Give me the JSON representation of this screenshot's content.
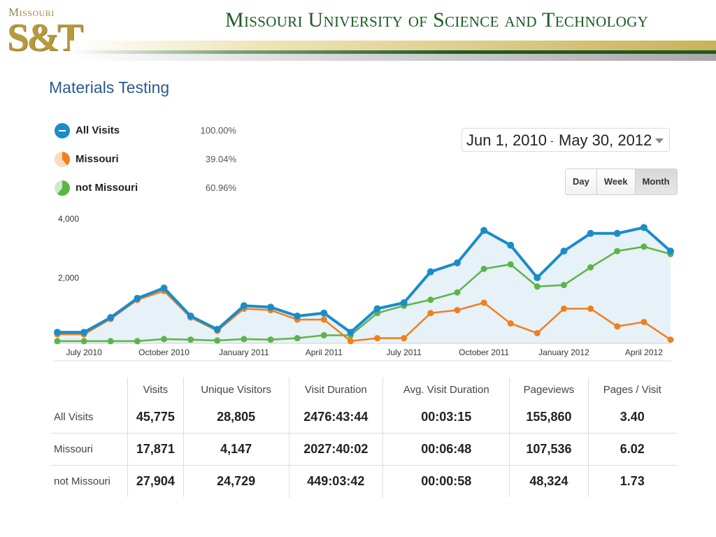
{
  "header": {
    "logo_top": "Missouri",
    "logo_main": "S&T",
    "title": "Missouri University of Science and Technology"
  },
  "page_title": "Materials Testing",
  "legend": [
    {
      "name": "All Visits",
      "pct": "100.00%",
      "color": "#1a8cc9"
    },
    {
      "name": "Missouri",
      "pct": "39.04%",
      "color": "#f07f1e"
    },
    {
      "name": "not Missouri",
      "pct": "60.96%",
      "color": "#5bb546"
    }
  ],
  "date_range": {
    "start": "Jun 1, 2010",
    "separator": "-",
    "end": "May 30, 2012"
  },
  "granularity": {
    "options": [
      "Day",
      "Week",
      "Month"
    ],
    "selected": "Month"
  },
  "chart_data": {
    "type": "line",
    "title": "",
    "xlabel": "",
    "ylabel": "",
    "ylim": [
      0,
      4500
    ],
    "y_ticks": [
      "4,000",
      "2,000"
    ],
    "y_tick_values": [
      4000,
      2000
    ],
    "x": [
      "Jun 2010",
      "Jul 2010",
      "Aug 2010",
      "Sep 2010",
      "Oct 2010",
      "Nov 2010",
      "Dec 2010",
      "Jan 2011",
      "Feb 2011",
      "Mar 2011",
      "Apr 2011",
      "May 2011",
      "Jun 2011",
      "Jul 2011",
      "Aug 2011",
      "Sep 2011",
      "Oct 2011",
      "Nov 2011",
      "Dec 2011",
      "Jan 2012",
      "Feb 2012",
      "Mar 2012",
      "Apr 2012",
      "May 2012"
    ],
    "x_tick_labels": [
      {
        "label": "July 2010",
        "index": 1
      },
      {
        "label": "October 2010",
        "index": 4
      },
      {
        "label": "January 2011",
        "index": 7
      },
      {
        "label": "April 2011",
        "index": 10
      },
      {
        "label": "July 2011",
        "index": 13
      },
      {
        "label": "October 2011",
        "index": 16
      },
      {
        "label": "January 2012",
        "index": 19
      },
      {
        "label": "April 2012",
        "index": 22
      }
    ],
    "series": [
      {
        "name": "All Visits",
        "color": "#1a8cc9",
        "values": [
          350,
          350,
          850,
          1500,
          1850,
          900,
          450,
          1250,
          1200,
          900,
          1000,
          350,
          1150,
          1350,
          2400,
          2700,
          3800,
          3300,
          2200,
          3100,
          3700,
          3700,
          3900,
          3100
        ]
      },
      {
        "name": "Missouri",
        "color": "#f07f1e",
        "values": [
          280,
          280,
          800,
          1450,
          1750,
          850,
          400,
          1150,
          1100,
          780,
          780,
          50,
          150,
          150,
          1000,
          1100,
          1350,
          650,
          320,
          1150,
          1150,
          550,
          700,
          100
        ]
      },
      {
        "name": "not Missouri",
        "color": "#5bb546",
        "values": [
          50,
          50,
          50,
          50,
          120,
          100,
          70,
          120,
          100,
          150,
          250,
          250,
          1000,
          1250,
          1450,
          1700,
          2500,
          2650,
          1900,
          1950,
          2550,
          3100,
          3250,
          3000
        ]
      }
    ],
    "grid": false,
    "legend_position": "top-left"
  },
  "table": {
    "columns": [
      "Visits",
      "Unique Visitors",
      "Visit Duration",
      "Avg. Visit Duration",
      "Pageviews",
      "Pages / Visit"
    ],
    "rows": [
      {
        "label": "All Visits",
        "values": [
          "45,775",
          "28,805",
          "2476:43:44",
          "00:03:15",
          "155,860",
          "3.40"
        ]
      },
      {
        "label": "Missouri",
        "values": [
          "17,871",
          "4,147",
          "2027:40:02",
          "00:06:48",
          "107,536",
          "6.02"
        ]
      },
      {
        "label": "not Missouri",
        "values": [
          "27,904",
          "24,729",
          "449:03:42",
          "00:00:58",
          "48,324",
          "1.73"
        ]
      }
    ]
  }
}
